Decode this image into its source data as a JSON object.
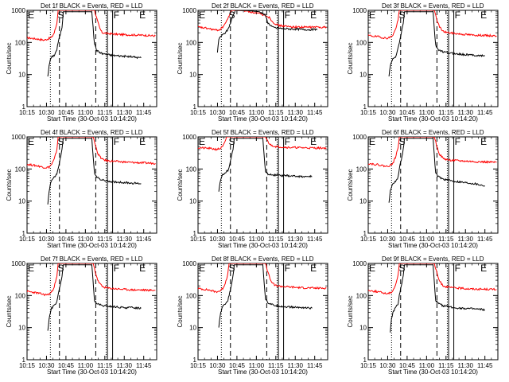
{
  "chart_data": {
    "type": "line",
    "x_tick_labels": [
      "10:15",
      "10:30",
      "10:45",
      "11:00",
      "11:15",
      "11:30",
      "11:45"
    ],
    "x_ticks_min": [
      0,
      15,
      30,
      45,
      60,
      75,
      90
    ],
    "x_range_min": [
      0,
      100
    ],
    "xlabel": "Start Time (30-Oct-03 10:14:20)",
    "ylabel": "Counts/sec",
    "y_scale": "log",
    "y_range": [
      1,
      1000
    ],
    "y_tick_labels": [
      "1",
      "10",
      "100",
      "1000"
    ],
    "y_tick_values": [
      1,
      10,
      100,
      1000
    ],
    "event_markers": [
      {
        "label": "E",
        "time_min": 0
      },
      {
        "label": "S",
        "time_min": 23
      },
      {
        "label": "F",
        "time_min": 66
      },
      {
        "label": "E",
        "time_min": 86
      }
    ],
    "dotted_lines_min": [
      18,
      61
    ],
    "dashed_lines_min": [
      25,
      53
    ],
    "solid_lines_min": [
      62,
      66
    ],
    "series_colors": {
      "events": "#000000",
      "lld": "#ff0000"
    },
    "panels": [
      {
        "title": "Det 1f BLACK = Events, RED = LLD",
        "lld": [
          [
            0,
            140
          ],
          [
            8,
            128
          ],
          [
            13,
            118
          ],
          [
            16,
            128
          ],
          [
            19,
            145
          ],
          [
            21,
            200
          ],
          [
            23,
            400
          ],
          [
            24,
            1000
          ],
          [
            52,
            1000
          ],
          [
            54,
            520
          ],
          [
            56,
            280
          ],
          [
            58,
            200
          ],
          [
            62,
            190
          ],
          [
            70,
            178
          ],
          [
            80,
            172
          ],
          [
            90,
            168
          ],
          [
            99,
            160
          ]
        ],
        "events": [
          [
            16,
            9
          ],
          [
            17,
            18
          ],
          [
            18,
            30
          ],
          [
            19,
            35
          ],
          [
            21,
            40
          ],
          [
            23,
            60
          ],
          [
            24,
            100
          ],
          [
            27,
            300
          ],
          [
            28,
            900
          ],
          [
            50,
            900
          ],
          [
            52,
            90
          ],
          [
            54,
            55
          ],
          [
            58,
            45
          ],
          [
            65,
            40
          ],
          [
            72,
            38
          ],
          [
            80,
            36
          ],
          [
            88,
            33
          ]
        ]
      },
      {
        "title": "Det 2f BLACK = Events, RED = LLD",
        "lld": [
          [
            0,
            300
          ],
          [
            8,
            270
          ],
          [
            14,
            240
          ],
          [
            17,
            250
          ],
          [
            19,
            300
          ],
          [
            22,
            450
          ],
          [
            24,
            700
          ],
          [
            26,
            1000
          ],
          [
            36,
            980
          ],
          [
            46,
            800
          ],
          [
            52,
            700
          ],
          [
            55,
            600
          ],
          [
            58,
            420
          ],
          [
            62,
            340
          ],
          [
            70,
            310
          ],
          [
            80,
            300
          ],
          [
            90,
            300
          ],
          [
            99,
            300
          ]
        ],
        "events": [
          [
            15,
            50
          ],
          [
            16,
            120
          ],
          [
            17,
            150
          ],
          [
            19,
            170
          ],
          [
            21,
            200
          ],
          [
            23,
            250
          ],
          [
            25,
            400
          ],
          [
            27,
            700
          ],
          [
            29,
            1000
          ],
          [
            38,
            980
          ],
          [
            48,
            900
          ],
          [
            52,
            700
          ],
          [
            54,
            400
          ],
          [
            58,
            290
          ],
          [
            65,
            270
          ],
          [
            75,
            260
          ],
          [
            85,
            250
          ],
          [
            92,
            250
          ]
        ]
      },
      {
        "title": "Det 3f BLACK = Events, RED = LLD",
        "lld": [
          [
            0,
            165
          ],
          [
            8,
            150
          ],
          [
            14,
            135
          ],
          [
            17,
            145
          ],
          [
            19,
            170
          ],
          [
            21,
            250
          ],
          [
            23,
            500
          ],
          [
            24,
            1000
          ],
          [
            51,
            1000
          ],
          [
            53,
            500
          ],
          [
            55,
            300
          ],
          [
            58,
            220
          ],
          [
            62,
            200
          ],
          [
            70,
            185
          ],
          [
            80,
            170
          ],
          [
            90,
            165
          ],
          [
            99,
            160
          ]
        ],
        "events": [
          [
            16,
            9
          ],
          [
            17,
            18
          ],
          [
            18,
            25
          ],
          [
            19,
            30
          ],
          [
            21,
            35
          ],
          [
            22,
            45
          ],
          [
            24,
            100
          ],
          [
            27,
            400
          ],
          [
            28,
            900
          ],
          [
            50,
            900
          ],
          [
            52,
            80
          ],
          [
            54,
            60
          ],
          [
            58,
            50
          ],
          [
            66,
            45
          ],
          [
            74,
            42
          ],
          [
            82,
            40
          ],
          [
            90,
            38
          ]
        ]
      },
      {
        "title": "Det 4f BLACK = Events, RED = LLD",
        "lld": [
          [
            0,
            140
          ],
          [
            8,
            125
          ],
          [
            14,
            110
          ],
          [
            17,
            115
          ],
          [
            19,
            140
          ],
          [
            21,
            200
          ],
          [
            23,
            400
          ],
          [
            24,
            1000
          ],
          [
            51,
            1000
          ],
          [
            53,
            500
          ],
          [
            55,
            280
          ],
          [
            58,
            200
          ],
          [
            62,
            180
          ],
          [
            70,
            170
          ],
          [
            80,
            160
          ],
          [
            90,
            155
          ],
          [
            99,
            150
          ]
        ],
        "events": [
          [
            16,
            8
          ],
          [
            17,
            20
          ],
          [
            18,
            35
          ],
          [
            19,
            45
          ],
          [
            21,
            55
          ],
          [
            23,
            70
          ],
          [
            24,
            100
          ],
          [
            27,
            400
          ],
          [
            28,
            900
          ],
          [
            50,
            900
          ],
          [
            52,
            70
          ],
          [
            54,
            55
          ],
          [
            58,
            45
          ],
          [
            66,
            40
          ],
          [
            74,
            38
          ],
          [
            82,
            36
          ],
          [
            88,
            35
          ]
        ]
      },
      {
        "title": "Det 5f BLACK = Events, RED = LLD",
        "lld": [
          [
            0,
            460
          ],
          [
            8,
            440
          ],
          [
            14,
            410
          ],
          [
            17,
            430
          ],
          [
            19,
            500
          ],
          [
            21,
            700
          ],
          [
            22,
            1000
          ],
          [
            52,
            1000
          ],
          [
            54,
            700
          ],
          [
            56,
            560
          ],
          [
            60,
            500
          ],
          [
            70,
            470
          ],
          [
            80,
            460
          ],
          [
            90,
            450
          ],
          [
            99,
            450
          ]
        ],
        "events": [
          [
            16,
            20
          ],
          [
            17,
            40
          ],
          [
            18,
            55
          ],
          [
            19,
            65
          ],
          [
            21,
            75
          ],
          [
            23,
            90
          ],
          [
            24,
            120
          ],
          [
            27,
            400
          ],
          [
            28,
            900
          ],
          [
            50,
            900
          ],
          [
            52,
            80
          ],
          [
            54,
            70
          ],
          [
            58,
            65
          ],
          [
            66,
            62
          ],
          [
            74,
            60
          ],
          [
            82,
            58
          ],
          [
            88,
            58
          ]
        ]
      },
      {
        "title": "Det 6f BLACK = Events, RED = LLD",
        "lld": [
          [
            0,
            150
          ],
          [
            8,
            135
          ],
          [
            14,
            120
          ],
          [
            17,
            130
          ],
          [
            19,
            150
          ],
          [
            21,
            230
          ],
          [
            23,
            450
          ],
          [
            24,
            1000
          ],
          [
            51,
            1000
          ],
          [
            53,
            500
          ],
          [
            55,
            290
          ],
          [
            58,
            210
          ],
          [
            62,
            190
          ],
          [
            70,
            180
          ],
          [
            80,
            170
          ],
          [
            90,
            165
          ],
          [
            99,
            160
          ]
        ],
        "events": [
          [
            16,
            9
          ],
          [
            17,
            20
          ],
          [
            18,
            28
          ],
          [
            19,
            35
          ],
          [
            21,
            42
          ],
          [
            23,
            55
          ],
          [
            24,
            100
          ],
          [
            27,
            400
          ],
          [
            28,
            900
          ],
          [
            50,
            900
          ],
          [
            52,
            75
          ],
          [
            54,
            58
          ],
          [
            58,
            48
          ],
          [
            66,
            42
          ],
          [
            74,
            38
          ],
          [
            82,
            35
          ],
          [
            90,
            30
          ]
        ]
      },
      {
        "title": "Det 7f BLACK = Events, RED = LLD",
        "lld": [
          [
            0,
            135
          ],
          [
            8,
            120
          ],
          [
            14,
            105
          ],
          [
            17,
            110
          ],
          [
            19,
            130
          ],
          [
            21,
            190
          ],
          [
            23,
            380
          ],
          [
            24,
            1000
          ],
          [
            51,
            1000
          ],
          [
            53,
            480
          ],
          [
            55,
            270
          ],
          [
            58,
            190
          ],
          [
            62,
            170
          ],
          [
            70,
            160
          ],
          [
            80,
            150
          ],
          [
            90,
            148
          ],
          [
            99,
            145
          ]
        ],
        "events": [
          [
            16,
            8
          ],
          [
            17,
            18
          ],
          [
            18,
            30
          ],
          [
            19,
            40
          ],
          [
            21,
            50
          ],
          [
            23,
            65
          ],
          [
            24,
            100
          ],
          [
            27,
            400
          ],
          [
            28,
            900
          ],
          [
            50,
            900
          ],
          [
            52,
            70
          ],
          [
            54,
            55
          ],
          [
            58,
            48
          ],
          [
            66,
            45
          ],
          [
            74,
            42
          ],
          [
            82,
            42
          ],
          [
            88,
            40
          ]
        ]
      },
      {
        "title": "Det 8f BLACK = Events, RED = LLD",
        "lld": [
          [
            0,
            165
          ],
          [
            8,
            150
          ],
          [
            14,
            130
          ],
          [
            17,
            140
          ],
          [
            19,
            165
          ],
          [
            21,
            240
          ],
          [
            23,
            480
          ],
          [
            24,
            1000
          ],
          [
            52,
            1000
          ],
          [
            54,
            520
          ],
          [
            56,
            290
          ],
          [
            59,
            210
          ],
          [
            63,
            195
          ],
          [
            70,
            185
          ],
          [
            80,
            175
          ],
          [
            90,
            170
          ],
          [
            99,
            170
          ]
        ],
        "events": [
          [
            16,
            10
          ],
          [
            17,
            22
          ],
          [
            18,
            35
          ],
          [
            19,
            45
          ],
          [
            21,
            55
          ],
          [
            23,
            70
          ],
          [
            24,
            100
          ],
          [
            27,
            400
          ],
          [
            28,
            900
          ],
          [
            50,
            900
          ],
          [
            52,
            80
          ],
          [
            54,
            60
          ],
          [
            58,
            50
          ],
          [
            66,
            45
          ],
          [
            74,
            43
          ],
          [
            82,
            42
          ],
          [
            88,
            40
          ]
        ]
      },
      {
        "title": "Det 9f BLACK = Events, RED = LLD",
        "lld": [
          [
            0,
            145
          ],
          [
            8,
            130
          ],
          [
            14,
            115
          ],
          [
            17,
            120
          ],
          [
            19,
            145
          ],
          [
            21,
            210
          ],
          [
            23,
            420
          ],
          [
            24,
            1000
          ],
          [
            51,
            1000
          ],
          [
            53,
            490
          ],
          [
            55,
            280
          ],
          [
            58,
            200
          ],
          [
            62,
            180
          ],
          [
            70,
            170
          ],
          [
            80,
            160
          ],
          [
            90,
            158
          ],
          [
            99,
            155
          ]
        ],
        "events": [
          [
            17,
            7
          ],
          [
            18,
            20
          ],
          [
            19,
            28
          ],
          [
            20,
            35
          ],
          [
            21,
            42
          ],
          [
            23,
            55
          ],
          [
            24,
            100
          ],
          [
            27,
            400
          ],
          [
            28,
            900
          ],
          [
            50,
            900
          ],
          [
            52,
            72
          ],
          [
            54,
            56
          ],
          [
            58,
            48
          ],
          [
            66,
            42
          ],
          [
            74,
            40
          ],
          [
            82,
            38
          ],
          [
            90,
            36
          ]
        ]
      }
    ]
  }
}
